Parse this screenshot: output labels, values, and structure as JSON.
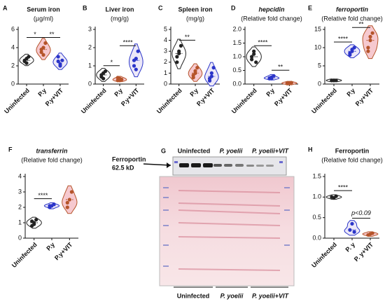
{
  "chart_data": [
    {
      "type": "violin",
      "panel": "A",
      "title": "Serum iron",
      "subtitle": "(µg/ml)",
      "italic": false,
      "categories": [
        "Uninfected",
        "P.y",
        "P.y+VIT"
      ],
      "groups": [
        {
          "color": "#222222",
          "fill": "#ffffff",
          "values": [
            2.5,
            2.8,
            3.0,
            2.6,
            2.3
          ]
        },
        {
          "color": "#b5542a",
          "fill": "#f6c9cf",
          "values": [
            3.5,
            4.0,
            4.5,
            3.8,
            3.2
          ]
        },
        {
          "color": "#2b35c9",
          "fill": "#ece8f8",
          "values": [
            2.5,
            2.2,
            2.6,
            3.0,
            2.0
          ]
        }
      ],
      "ylim": [
        0,
        6
      ],
      "yticks": [
        0,
        2,
        4,
        6
      ],
      "annotations": [
        {
          "text": "*",
          "from": 0,
          "to": 1
        },
        {
          "text": "**",
          "from": 1,
          "to": 2
        }
      ]
    },
    {
      "type": "violin",
      "panel": "B",
      "title": "Liver iron",
      "subtitle": "(mg/g)",
      "italic": false,
      "categories": [
        "Uninfected",
        "P.y",
        "P.y+VIT"
      ],
      "groups": [
        {
          "color": "#222222",
          "fill": "#ffffff",
          "values": [
            0.4,
            0.6,
            0.7,
            0.5,
            0.3
          ]
        },
        {
          "color": "#b5542a",
          "fill": "#f6c9cf",
          "values": [
            0.2,
            0.3,
            0.25,
            0.35,
            0.2
          ]
        },
        {
          "color": "#2b35c9",
          "fill": "#ece8f8",
          "values": [
            1.0,
            1.4,
            1.8,
            1.3,
            0.8
          ]
        }
      ],
      "ylim": [
        0,
        3
      ],
      "yticks": [
        0,
        1,
        2,
        3
      ],
      "annotations": [
        {
          "text": "*",
          "from": 0,
          "to": 1
        },
        {
          "text": "****",
          "from": 1,
          "to": 2
        }
      ]
    },
    {
      "type": "violin",
      "panel": "C",
      "title": "Spleen iron",
      "subtitle": "(mg/g)",
      "italic": false,
      "categories": [
        "Uninfected",
        "P.y",
        "P.y+VIT"
      ],
      "groups": [
        {
          "color": "#222222",
          "fill": "#ffffff",
          "values": [
            2.5,
            3.0,
            3.5,
            2.0,
            2.8
          ]
        },
        {
          "color": "#b5542a",
          "fill": "#f6c9cf",
          "values": [
            0.8,
            1.2,
            1.5,
            0.6,
            1.0
          ]
        },
        {
          "color": "#2b35c9",
          "fill": "#ece8f8",
          "values": [
            0.5,
            1.0,
            1.5,
            0.3,
            0.7
          ]
        }
      ],
      "ylim": [
        0,
        5
      ],
      "yticks": [
        0,
        1,
        2,
        3,
        4,
        5
      ],
      "annotations": [
        {
          "text": "**",
          "from": 0,
          "to": 1
        }
      ]
    },
    {
      "type": "violin",
      "panel": "D",
      "title": "hepcidin",
      "subtitle": "(Relative fold change)",
      "italic": true,
      "categories": [
        "Uninfected",
        "P.y",
        "P.y+VIT"
      ],
      "groups": [
        {
          "color": "#222222",
          "fill": "#ffffff",
          "values": [
            1.0,
            1.2,
            0.8,
            0.9,
            1.1
          ]
        },
        {
          "color": "#2b35c9",
          "fill": "#ece8f8",
          "values": [
            0.2,
            0.25,
            0.3,
            0.22,
            0.2
          ]
        },
        {
          "color": "#b5542a",
          "fill": "#f6c9cf",
          "values": [
            0.02,
            0.03,
            0.05,
            0.04,
            0.03
          ]
        }
      ],
      "ylim": [
        0,
        2
      ],
      "yticks": [
        {
          "value": 0,
          "label": "0.0"
        },
        {
          "value": 0.5,
          "label": "0.5"
        },
        {
          "value": 1,
          "label": "1.0"
        },
        {
          "value": 1.5,
          "label": "1.5"
        },
        {
          "value": 2,
          "label": "2.0"
        }
      ],
      "annotations": [
        {
          "text": "****",
          "from": 0,
          "to": 1
        },
        {
          "text": "**",
          "from": 1,
          "to": 2
        }
      ]
    },
    {
      "type": "violin",
      "panel": "E",
      "title": "ferroportin",
      "subtitle": "(Relative fold change)",
      "italic": true,
      "categories": [
        "Uninfected",
        "P.y",
        "P.y+VIT"
      ],
      "groups": [
        {
          "color": "#222222",
          "fill": "#ffffff",
          "values": [
            1,
            1,
            1,
            1,
            1
          ]
        },
        {
          "color": "#2b35c9",
          "fill": "#ece8f8",
          "values": [
            8,
            9,
            10,
            8.5,
            9.5
          ]
        },
        {
          "color": "#b5542a",
          "fill": "#f6c9cf",
          "values": [
            10,
            12,
            14,
            9,
            13
          ]
        }
      ],
      "ylim": [
        0,
        15
      ],
      "yticks": [
        0,
        5,
        10,
        15
      ],
      "annotations": [
        {
          "text": "****",
          "from": 0,
          "to": 1
        },
        {
          "text": "**",
          "from": 1,
          "to": 2
        }
      ]
    },
    {
      "type": "violin",
      "panel": "F",
      "title": "transferrin",
      "subtitle": "(Relative fold change)",
      "italic": true,
      "categories": [
        "Uninfected",
        "P.y",
        "P.y+VIT"
      ],
      "groups": [
        {
          "color": "#222222",
          "fill": "#ffffff",
          "values": [
            0.8,
            1.0,
            1.2,
            1.1,
            0.9
          ]
        },
        {
          "color": "#2b35c9",
          "fill": "#ece8f8",
          "values": [
            2.0,
            2.1,
            2.2,
            2.1
          ]
        },
        {
          "color": "#b5542a",
          "fill": "#f6c9cf",
          "values": [
            2.0,
            2.5,
            3.0,
            2.3
          ]
        }
      ],
      "ylim": [
        0,
        4
      ],
      "yticks": [
        0,
        1,
        2,
        3,
        4
      ],
      "annotations": [
        {
          "text": "****",
          "from": 0,
          "to": 1
        }
      ]
    },
    {
      "type": "violin",
      "panel": "H",
      "title": "Ferroportin",
      "subtitle": "(Relative fold change)",
      "italic": false,
      "categories": [
        "Uninfected",
        "P. y",
        "P. y+VIT"
      ],
      "groups": [
        {
          "color": "#222222",
          "fill": "#ffffff",
          "values": [
            1.0,
            0.98,
            1.02
          ]
        },
        {
          "color": "#2b35c9",
          "fill": "#ece8f8",
          "values": [
            0.2,
            0.35,
            0.15
          ]
        },
        {
          "color": "#b5542a",
          "fill": "#f6c9cf",
          "values": [
            0.08,
            0.1,
            0.12
          ]
        }
      ],
      "ylim": [
        0,
        1.5
      ],
      "yticks": [
        {
          "value": 0,
          "label": "0.0"
        },
        {
          "value": 0.5,
          "label": "0.5"
        },
        {
          "value": 1,
          "label": "1.0"
        },
        {
          "value": 1.5,
          "label": "1.5"
        }
      ],
      "annotations": [
        {
          "text": "****",
          "from": 0,
          "to": 1
        },
        {
          "text": "p<0.09",
          "from": 1,
          "to": 2
        }
      ]
    }
  ],
  "blot": {
    "panel": "G",
    "band_label": "Ferroportin",
    "size_label": "62.5 kD",
    "lanes": [
      "Uninfected",
      "P. yoelii",
      "P. yoelii+VIT"
    ]
  }
}
